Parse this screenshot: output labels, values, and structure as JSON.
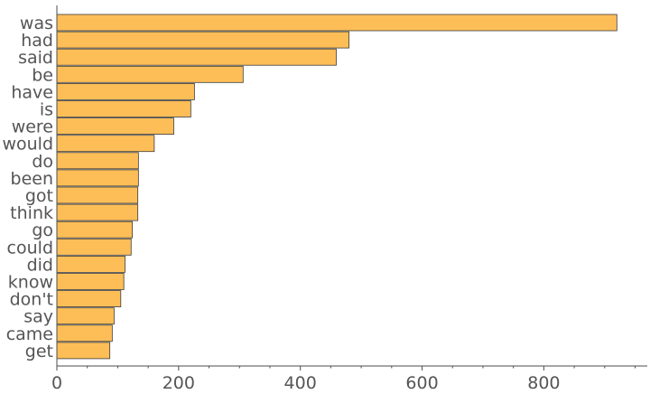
{
  "chart_data": {
    "type": "bar",
    "orientation": "horizontal",
    "categories": [
      "was",
      "had",
      "said",
      "be",
      "have",
      "is",
      "were",
      "would",
      "do",
      "been",
      "got",
      "think",
      "go",
      "could",
      "did",
      "know",
      "don't",
      "say",
      "came",
      "get"
    ],
    "values": [
      920,
      480,
      459,
      306,
      226,
      220,
      192,
      160,
      134,
      134,
      133,
      133,
      124,
      122,
      112,
      110,
      105,
      94,
      91,
      87
    ],
    "xlim": [
      0,
      970
    ],
    "xticks": [
      0,
      200,
      400,
      600,
      800
    ],
    "minor_tick_step": 50,
    "grid": false,
    "title": "",
    "xlabel": "",
    "ylabel": "",
    "colors": {
      "bar": "#fdbe57",
      "bar_edge": "#3c3c3c",
      "axis": "#4d4d4d",
      "text": "#555555"
    }
  }
}
